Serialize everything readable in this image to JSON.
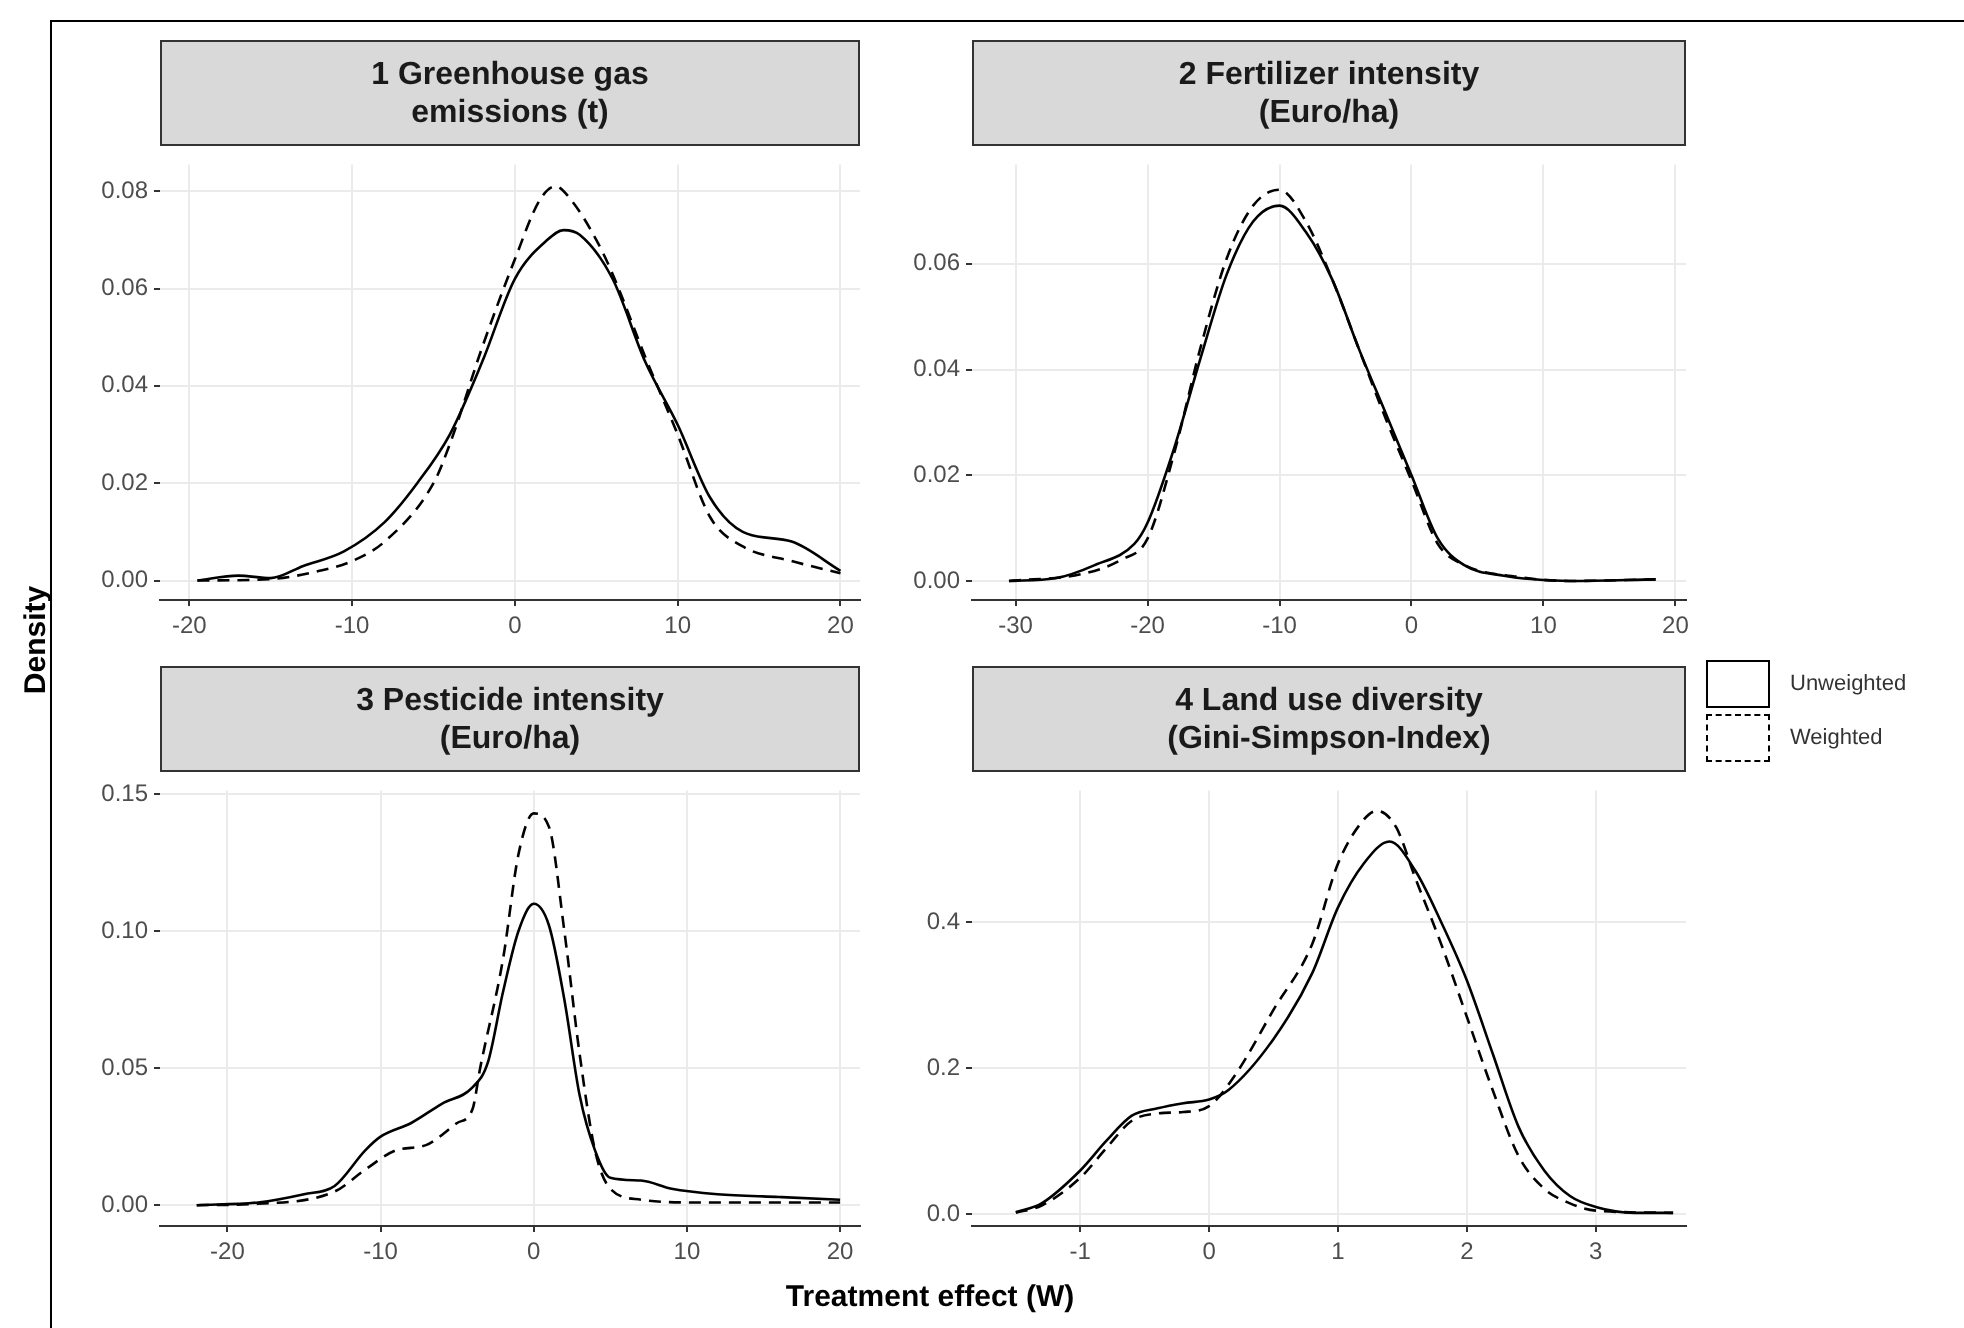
{
  "chart_data": [
    {
      "type": "line",
      "title": "1 Greenhouse gas emissions (t)",
      "ylabel": "Density",
      "xlim": [
        -21.8,
        21.2
      ],
      "xticks": [
        -20,
        -10,
        0,
        10,
        20
      ],
      "ylim": [
        -0.004,
        0.0855
      ],
      "yticks": [
        {
          "value": 0,
          "label": "0.00"
        },
        0.02,
        0.04,
        0.06,
        0.08
      ],
      "grid": true,
      "marker": "none",
      "series": [
        {
          "color": "#000000",
          "line_style": "solid",
          "x": [
            -19.5,
            -17,
            -15,
            -13,
            -10.5,
            -8,
            -6,
            -4,
            -2,
            0,
            2,
            3,
            4,
            6,
            8,
            10,
            12,
            14,
            17,
            20
          ],
          "values": [
            0,
            0.001,
            0.0005,
            0.003,
            0.006,
            0.012,
            0.02,
            0.03,
            0.045,
            0.062,
            0.07,
            0.072,
            0.071,
            0.062,
            0.045,
            0.032,
            0.017,
            0.01,
            0.008,
            0.002
          ]
        },
        {
          "color": "#000000",
          "line_style": "dashed",
          "x": [
            -19.5,
            -15,
            -12,
            -10,
            -8,
            -5,
            -4,
            -2,
            0,
            1.5,
            2.5,
            3.5,
            5,
            6,
            8,
            10,
            12,
            14,
            17,
            20
          ],
          "values": [
            0,
            0.0003,
            0.002,
            0.004,
            0.008,
            0.02,
            0.028,
            0.048,
            0.066,
            0.078,
            0.081,
            0.078,
            0.07,
            0.063,
            0.046,
            0.03,
            0.013,
            0.007,
            0.004,
            0.0015
          ]
        }
      ]
    },
    {
      "type": "line",
      "title": "2 Fertilizer intensity (Euro/ha)",
      "xlim": [
        -33.3,
        20.8
      ],
      "xticks": [
        -30,
        -20,
        -10,
        0,
        10,
        20
      ],
      "ylim": [
        -0.0036,
        0.0788
      ],
      "yticks": [
        {
          "value": 0,
          "label": "0.00"
        },
        0.02,
        0.04,
        0.06
      ],
      "grid": true,
      "marker": "none",
      "series": [
        {
          "color": "#000000",
          "line_style": "solid",
          "x": [
            -30.5,
            -27,
            -24,
            -21,
            -20,
            -18,
            -16,
            -14,
            -12,
            -10,
            -8,
            -6,
            -4,
            -2,
            0,
            2,
            4,
            7,
            12,
            18.5
          ],
          "values": [
            0,
            0.0005,
            0.003,
            0.007,
            0.011,
            0.025,
            0.042,
            0.058,
            0.068,
            0.071,
            0.066,
            0.057,
            0.044,
            0.032,
            0.02,
            0.008,
            0.003,
            0.001,
            0,
            0.0003
          ]
        },
        {
          "color": "#000000",
          "line_style": "dashed",
          "x": [
            -30.5,
            -25,
            -22,
            -20,
            -18,
            -16,
            -14,
            -12,
            -10,
            -8,
            -6,
            -4,
            -2,
            0,
            2,
            4,
            8,
            12,
            18.5
          ],
          "values": [
            0,
            0.0013,
            0.004,
            0.008,
            0.024,
            0.044,
            0.061,
            0.071,
            0.074,
            0.068,
            0.057,
            0.044,
            0.031,
            0.019,
            0.007,
            0.003,
            0.0008,
            0,
            0.0003
          ]
        }
      ]
    },
    {
      "type": "line",
      "title": "3 Pesticide intensity (Euro/ha)",
      "xlabel": "Treatment effect (W)",
      "xlim": [
        -24.4,
        21.3
      ],
      "xticks": [
        -20,
        -10,
        0,
        10,
        20
      ],
      "ylim": [
        -0.0076,
        0.1514
      ],
      "yticks": [
        {
          "value": 0,
          "label": "0.00"
        },
        {
          "value": 0.05,
          "label": "0.05"
        },
        {
          "value": 0.1,
          "label": "0.10"
        },
        {
          "value": 0.15,
          "label": "0.15"
        }
      ],
      "grid": true,
      "marker": "none",
      "series": [
        {
          "color": "#000000",
          "line_style": "solid",
          "x": [
            -22,
            -18,
            -15,
            -13,
            -11,
            -10,
            -8,
            -6,
            -4,
            -3,
            -2,
            -1,
            0,
            1,
            2,
            3,
            4,
            5,
            7,
            9,
            12,
            16,
            20
          ],
          "values": [
            0,
            0.001,
            0.004,
            0.007,
            0.02,
            0.025,
            0.03,
            0.037,
            0.043,
            0.052,
            0.078,
            0.1,
            0.11,
            0.102,
            0.075,
            0.04,
            0.02,
            0.01,
            0.009,
            0.006,
            0.004,
            0.003,
            0.002
          ]
        },
        {
          "color": "#000000",
          "line_style": "dashed",
          "x": [
            -22,
            -18,
            -13,
            -11,
            -9,
            -7,
            -5,
            -4,
            -3.5,
            -2,
            -1,
            0,
            1,
            2,
            3,
            4,
            5,
            7,
            10,
            20
          ],
          "values": [
            0,
            0.0005,
            0.005,
            0.013,
            0.02,
            0.022,
            0.03,
            0.035,
            0.05,
            0.09,
            0.128,
            0.143,
            0.138,
            0.1,
            0.055,
            0.02,
            0.006,
            0.002,
            0.001,
            0.001
          ]
        }
      ]
    },
    {
      "type": "line",
      "title": "4 Land use diversity (Gini-Simpson-Index)",
      "xlim": [
        -1.84,
        3.7
      ],
      "xticks": [
        -1,
        0,
        1,
        2,
        3
      ],
      "ylim": [
        -0.016,
        0.58
      ],
      "yticks": [
        {
          "value": 0,
          "label": "0.0"
        },
        {
          "value": 0.2,
          "label": "0.2"
        },
        {
          "value": 0.4,
          "label": "0.4"
        }
      ],
      "grid": true,
      "marker": "none",
      "legend": "right",
      "series": [
        {
          "name": "Unweighted",
          "color": "#000000",
          "line_style": "solid",
          "x": [
            -1.5,
            -1.3,
            -1,
            -0.8,
            -0.6,
            -0.4,
            -0.2,
            0,
            0.15,
            0.5,
            0.8,
            1,
            1.2,
            1.4,
            1.6,
            1.8,
            2,
            2.2,
            2.4,
            2.6,
            2.8,
            3,
            3.3,
            3.6
          ],
          "values": [
            0.003,
            0.015,
            0.06,
            0.1,
            0.135,
            0.145,
            0.152,
            0.157,
            0.17,
            0.24,
            0.33,
            0.42,
            0.48,
            0.51,
            0.47,
            0.4,
            0.32,
            0.22,
            0.12,
            0.06,
            0.025,
            0.01,
            0.002,
            0.002
          ]
        },
        {
          "name": "Weighted",
          "color": "#000000",
          "line_style": "dashed",
          "x": [
            -1.5,
            -1.3,
            -1,
            -0.8,
            -0.6,
            -0.4,
            -0.2,
            0,
            0.2,
            0.5,
            0.8,
            1,
            1.2,
            1.3,
            1.45,
            1.6,
            1.8,
            2,
            2.2,
            2.4,
            2.6,
            2.8,
            3,
            3.6
          ],
          "values": [
            0.002,
            0.012,
            0.05,
            0.09,
            0.128,
            0.138,
            0.14,
            0.148,
            0.19,
            0.28,
            0.37,
            0.48,
            0.54,
            0.552,
            0.53,
            0.46,
            0.37,
            0.27,
            0.17,
            0.08,
            0.035,
            0.015,
            0.005,
            0.002
          ]
        }
      ]
    }
  ]
}
